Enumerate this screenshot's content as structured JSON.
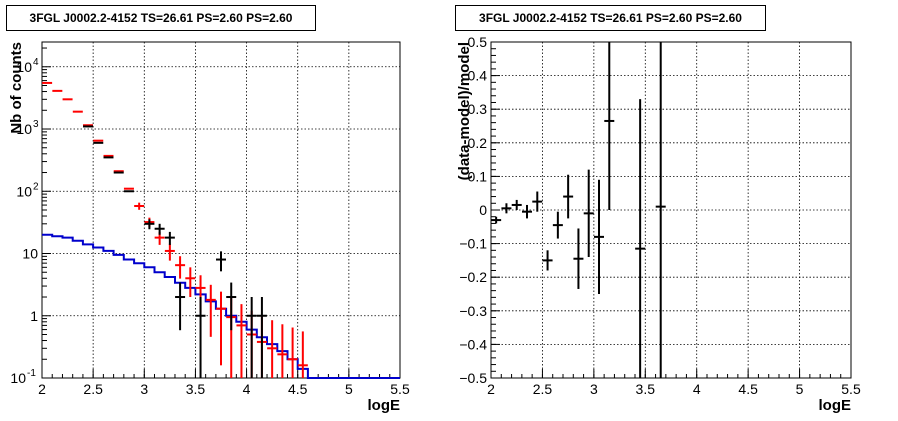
{
  "chart_data": [
    {
      "type": "scatter",
      "title": "3FGL J0002.2-4152 TS=26.61 PS=2.60 PS=2.60",
      "xlabel": "logE",
      "ylabel": "Nb of counts",
      "xlim": [
        2,
        5.5
      ],
      "ylim": [
        0.1,
        25000
      ],
      "yscale": "log",
      "grid": true,
      "x_ticks": [
        "2",
        "2.5",
        "3",
        "3.5",
        "4",
        "4.5",
        "5",
        "5.5"
      ],
      "y_ticks": [
        {
          "value": 0.1,
          "label": "10",
          "sup": "-1"
        },
        {
          "value": 1,
          "label": "1",
          "sup": ""
        },
        {
          "value": 10,
          "label": "10",
          "sup": ""
        },
        {
          "value": 100,
          "label": "10",
          "sup": "2"
        },
        {
          "value": 1000,
          "label": "10",
          "sup": "3"
        },
        {
          "value": 10000,
          "label": "10",
          "sup": "4"
        }
      ],
      "series": [
        {
          "color": "#ff0000",
          "x": [
            2.05,
            2.15,
            2.25,
            2.35,
            2.45,
            2.55,
            2.65,
            2.75,
            2.85,
            2.95,
            3.05,
            3.15,
            3.25,
            3.35,
            3.45,
            3.55,
            3.65,
            3.75,
            3.85,
            3.95,
            4.05,
            4.15,
            4.25,
            4.35,
            4.45,
            4.55
          ],
          "y": [
            5500,
            4100,
            3000,
            1900,
            1150,
            650,
            370,
            210,
            110,
            58,
            32,
            18,
            11,
            6.5,
            4,
            2.8,
            1.8,
            1.3,
            0.95,
            0.7,
            0.5,
            0.38,
            0.3,
            0.24,
            0.2,
            0.16
          ]
        },
        {
          "color": "#000000",
          "x": [
            2.45,
            2.55,
            2.65,
            2.75,
            2.85,
            3.05,
            3.15,
            3.25,
            3.35,
            3.55,
            3.75,
            3.85,
            4.05,
            4.15
          ],
          "y": [
            1100,
            600,
            350,
            200,
            100,
            30,
            25,
            18,
            2,
            1,
            8,
            2,
            1,
            1
          ]
        },
        {
          "color": "#0000cc",
          "kind": "step",
          "edges": [
            2.0,
            2.1,
            2.2,
            2.3,
            2.4,
            2.5,
            2.6,
            2.7,
            2.8,
            2.9,
            3.0,
            3.1,
            3.2,
            3.3,
            3.4,
            3.5,
            3.6,
            3.7,
            3.8,
            3.9,
            4.0,
            4.1,
            4.2,
            4.3,
            4.4,
            4.5,
            4.6,
            5.5
          ],
          "y": [
            20,
            19,
            18,
            16,
            14,
            12.5,
            11,
            9.5,
            8,
            7,
            6,
            5,
            4.2,
            3.4,
            2.8,
            2.2,
            1.7,
            1.3,
            1.0,
            0.8,
            0.6,
            0.45,
            0.35,
            0.27,
            0.2,
            0.14,
            0.1
          ]
        }
      ]
    },
    {
      "type": "scatter",
      "title": "3FGL J0002.2-4152 TS=26.61 PS=2.60 PS=2.60",
      "xlabel": "logE",
      "ylabel": "(data-model)/model",
      "xlim": [
        2,
        5.5
      ],
      "ylim": [
        -0.5,
        0.5
      ],
      "grid": true,
      "x_ticks": [
        "2",
        "2.5",
        "3",
        "3.5",
        "4",
        "4.5",
        "5",
        "5.5"
      ],
      "y_ticks": [
        "−0.5",
        "−0.4",
        "−0.3",
        "−0.2",
        "−0.1",
        "0",
        "0.1",
        "0.2",
        "0.3",
        "0.4",
        "0.5"
      ],
      "series": [
        {
          "color": "#000000",
          "x": [
            2.05,
            2.15,
            2.25,
            2.35,
            2.45,
            2.55,
            2.65,
            2.75,
            2.85,
            2.95,
            3.05,
            3.15,
            3.45,
            3.65
          ],
          "y": [
            -0.03,
            0.005,
            0.015,
            -0.005,
            0.025,
            -0.15,
            -0.045,
            0.04,
            -0.145,
            -0.01,
            -0.08,
            0.265,
            -0.115,
            0.01
          ],
          "err": [
            0.01,
            0.015,
            0.015,
            0.02,
            0.03,
            0.03,
            0.04,
            0.065,
            0.09,
            0.13,
            0.17,
            0.265,
            0.445,
            0.6
          ]
        }
      ]
    }
  ]
}
